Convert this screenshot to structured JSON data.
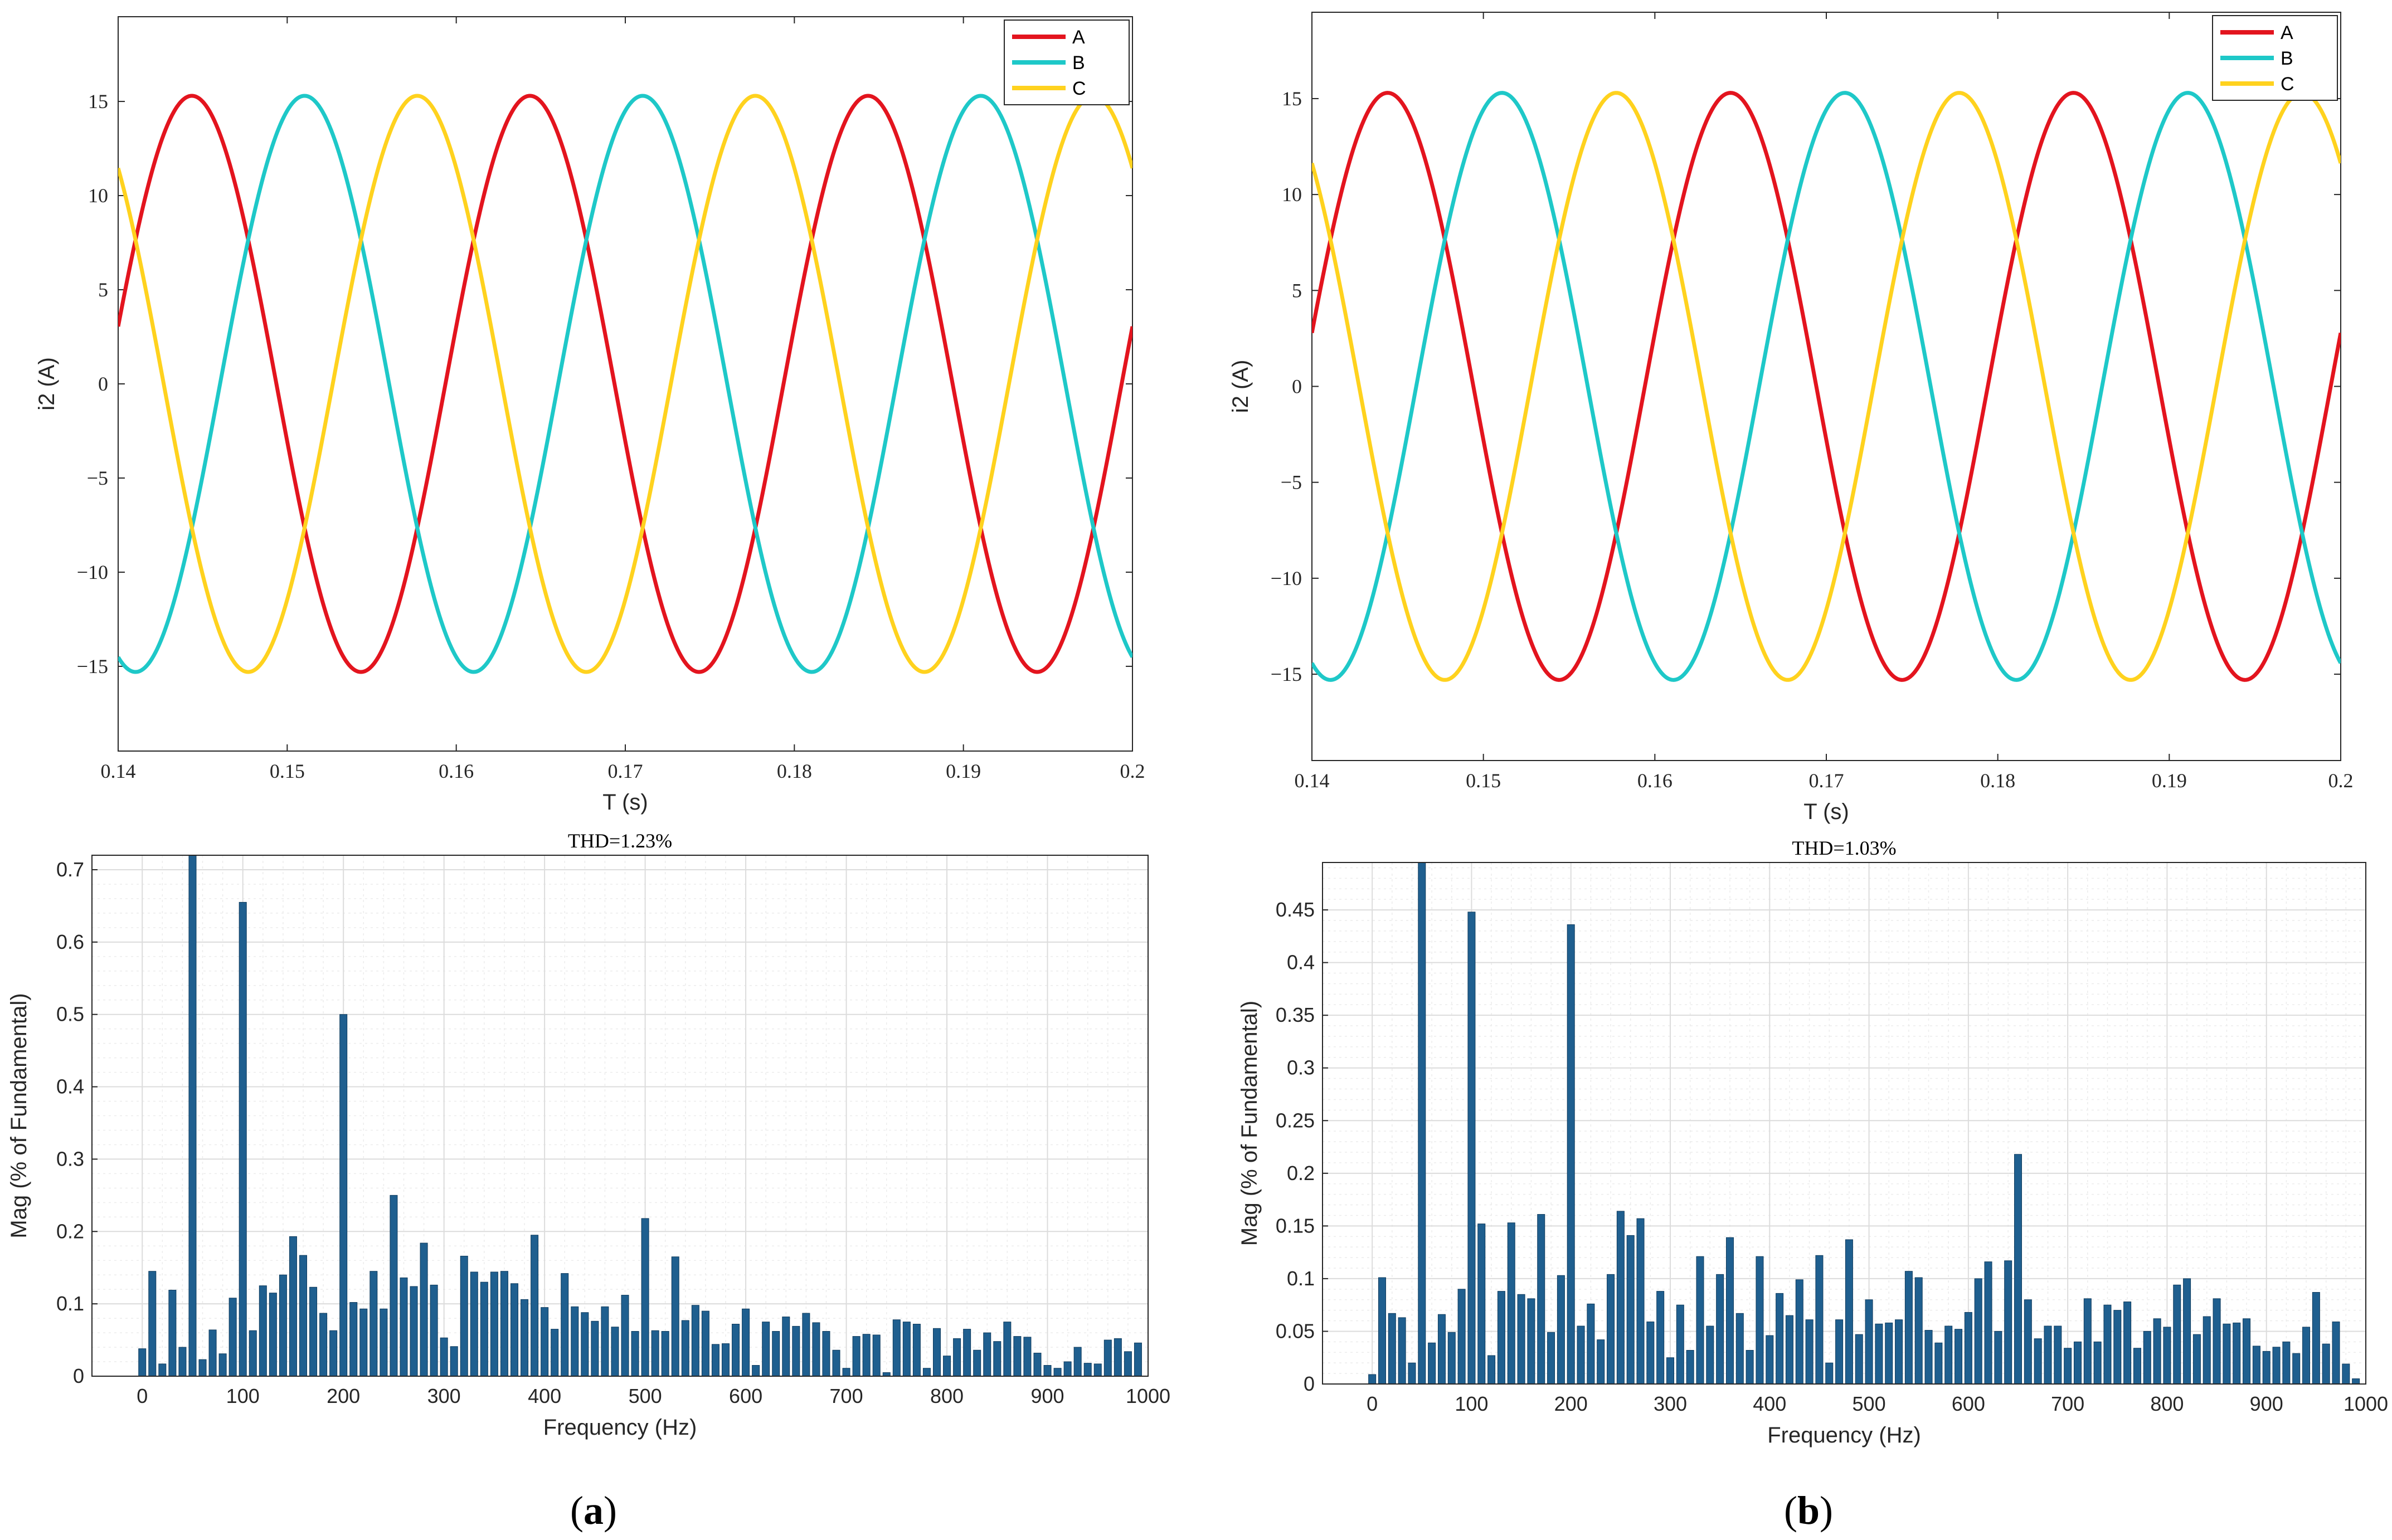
{
  "figure": {
    "panel_labels": [
      {
        "open": "(",
        "letter": "a",
        "close": ")"
      },
      {
        "open": "(",
        "letter": "b",
        "close": ")"
      }
    ],
    "colors": {
      "A": "#e3141e",
      "B": "#1ec8c8",
      "C": "#ffd21e",
      "bar": "#1f5f8f",
      "grid": "#e6e6e6",
      "axis": "#262626"
    }
  },
  "chart_data": [
    {
      "id": "waveform-a",
      "type": "line",
      "xlabel": "T (s)",
      "ylabel": "i2 (A)",
      "xlim": [
        0.14,
        0.2
      ],
      "ylim": [
        -19.5,
        19.5
      ],
      "xticks": [
        0.14,
        0.15,
        0.16,
        0.17,
        0.18,
        0.19,
        0.2
      ],
      "xtick_labels": [
        "0.14",
        "0.15",
        "0.16",
        "0.17",
        "0.18",
        "0.19",
        "0.2"
      ],
      "yticks": [
        15,
        10,
        5,
        0,
        -5,
        -10,
        -15
      ],
      "ytick_labels": [
        "15",
        "10",
        "5",
        "0",
        "−5",
        "−10",
        "−15"
      ],
      "legend": [
        "A",
        "B",
        "C"
      ],
      "legend_position": "top-right",
      "series": [
        {
          "name": "A",
          "amplitude": 15.3,
          "frequency_hz": 50,
          "phase_deg": 11.5
        },
        {
          "name": "B",
          "amplitude": 15.3,
          "frequency_hz": 50,
          "phase_deg": -108.5
        },
        {
          "name": "C",
          "amplitude": 15.3,
          "frequency_hz": 50,
          "phase_deg": 131.5
        }
      ]
    },
    {
      "id": "waveform-b",
      "type": "line",
      "xlabel": "T (s)",
      "ylabel": "i2 (A)",
      "xlim": [
        0.14,
        0.2
      ],
      "ylim": [
        -19.5,
        19.5
      ],
      "xticks": [
        0.14,
        0.15,
        0.16,
        0.17,
        0.18,
        0.19,
        0.2
      ],
      "xtick_labels": [
        "0.14",
        "0.15",
        "0.16",
        "0.17",
        "0.18",
        "0.19",
        "0.2"
      ],
      "yticks": [
        15,
        10,
        5,
        0,
        -5,
        -10,
        -15
      ],
      "ytick_labels": [
        "15",
        "10",
        "5",
        "0",
        "−5",
        "−10",
        "−15"
      ],
      "legend": [
        "A",
        "B",
        "C"
      ],
      "legend_position": "top-right",
      "series": [
        {
          "name": "A",
          "amplitude": 15.3,
          "frequency_hz": 50,
          "phase_deg": 10.5
        },
        {
          "name": "B",
          "amplitude": 15.3,
          "frequency_hz": 50,
          "phase_deg": -109.5
        },
        {
          "name": "C",
          "amplitude": 15.3,
          "frequency_hz": 50,
          "phase_deg": 130.5
        }
      ]
    },
    {
      "id": "spectrum-a",
      "type": "bar",
      "title": "THD=1.23%",
      "xlabel": "Frequency (Hz)",
      "ylabel": "Mag (% of Fundamental)",
      "xlim": [
        -50,
        1000
      ],
      "ylim": [
        0,
        0.72
      ],
      "xticks": [
        0,
        100,
        200,
        300,
        400,
        500,
        600,
        700,
        800,
        900,
        1000
      ],
      "yticks": [
        0,
        0.1,
        0.2,
        0.3,
        0.4,
        0.5,
        0.6,
        0.7
      ],
      "ytick_labels": [
        "0",
        "0.1",
        "0.2",
        "0.3",
        "0.4",
        "0.5",
        "0.6",
        "0.7"
      ],
      "grid": "on",
      "x": [
        0,
        10,
        20,
        30,
        40,
        50,
        60,
        70,
        80,
        90,
        100,
        110,
        120,
        130,
        140,
        150,
        160,
        170,
        180,
        190,
        200,
        210,
        220,
        230,
        240,
        250,
        260,
        270,
        280,
        290,
        300,
        310,
        320,
        330,
        340,
        350,
        360,
        370,
        380,
        390,
        400,
        410,
        420,
        430,
        440,
        450,
        460,
        470,
        480,
        490,
        500,
        510,
        520,
        530,
        540,
        550,
        560,
        570,
        580,
        590,
        600,
        610,
        620,
        630,
        640,
        650,
        660,
        670,
        680,
        690,
        700,
        710,
        720,
        730,
        740,
        750,
        760,
        770,
        780,
        790,
        800,
        810,
        820,
        830,
        840,
        850,
        860,
        870,
        880,
        890,
        900,
        910,
        920,
        930,
        940,
        950,
        960,
        970,
        980,
        990
      ],
      "values": [
        0.038,
        0.145,
        0.017,
        0.119,
        0.04,
        0.72,
        0.023,
        0.064,
        0.031,
        0.108,
        0.655,
        0.063,
        0.125,
        0.115,
        0.14,
        0.193,
        0.167,
        0.123,
        0.087,
        0.063,
        0.5,
        0.102,
        0.093,
        0.145,
        0.093,
        0.25,
        0.136,
        0.124,
        0.184,
        0.126,
        0.053,
        0.041,
        0.166,
        0.144,
        0.13,
        0.144,
        0.145,
        0.128,
        0.106,
        0.195,
        0.095,
        0.065,
        0.142,
        0.096,
        0.088,
        0.076,
        0.096,
        0.068,
        0.112,
        0.062,
        0.218,
        0.063,
        0.062,
        0.165,
        0.077,
        0.098,
        0.09,
        0.044,
        0.045,
        0.072,
        0.093,
        0.015,
        0.075,
        0.062,
        0.082,
        0.069,
        0.087,
        0.074,
        0.062,
        0.036,
        0.011,
        0.055,
        0.058,
        0.057,
        0.005,
        0.078,
        0.075,
        0.072,
        0.011,
        0.066,
        0.028,
        0.052,
        0.065,
        0.036,
        0.06,
        0.048,
        0.075,
        0.055,
        0.054,
        0.032,
        0.015,
        0.011,
        0.02,
        0.04,
        0.018,
        0.017,
        0.05,
        0.052,
        0.034,
        0.046
      ]
    },
    {
      "id": "spectrum-b",
      "type": "bar",
      "title": "THD=1.03%",
      "xlabel": "Frequency (Hz)",
      "ylabel": "Mag (% of Fundamental)",
      "xlim": [
        -50,
        1000
      ],
      "ylim": [
        0,
        0.495
      ],
      "xticks": [
        0,
        100,
        200,
        300,
        400,
        500,
        600,
        700,
        800,
        900,
        1000
      ],
      "yticks": [
        0,
        0.05,
        0.1,
        0.15,
        0.2,
        0.25,
        0.3,
        0.35,
        0.4,
        0.45
      ],
      "ytick_labels": [
        "0",
        "0.05",
        "0.1",
        "0.15",
        "0.2",
        "0.25",
        "0.3",
        "0.35",
        "0.4",
        "0.45"
      ],
      "grid": "on",
      "x": [
        0,
        10,
        20,
        30,
        40,
        50,
        60,
        70,
        80,
        90,
        100,
        110,
        120,
        130,
        140,
        150,
        160,
        170,
        180,
        190,
        200,
        210,
        220,
        230,
        240,
        250,
        260,
        270,
        280,
        290,
        300,
        310,
        320,
        330,
        340,
        350,
        360,
        370,
        380,
        390,
        400,
        410,
        420,
        430,
        440,
        450,
        460,
        470,
        480,
        490,
        500,
        510,
        520,
        530,
        540,
        550,
        560,
        570,
        580,
        590,
        600,
        610,
        620,
        630,
        640,
        650,
        660,
        670,
        680,
        690,
        700,
        710,
        720,
        730,
        740,
        750,
        760,
        770,
        780,
        790,
        800,
        810,
        820,
        830,
        840,
        850,
        860,
        870,
        880,
        890,
        900,
        910,
        920,
        930,
        940,
        950,
        960,
        970,
        980,
        990
      ],
      "values": [
        0.009,
        0.101,
        0.067,
        0.063,
        0.02,
        0.495,
        0.039,
        0.066,
        0.049,
        0.09,
        0.448,
        0.152,
        0.027,
        0.088,
        0.153,
        0.085,
        0.081,
        0.161,
        0.049,
        0.103,
        0.436,
        0.055,
        0.076,
        0.042,
        0.104,
        0.164,
        0.141,
        0.157,
        0.059,
        0.088,
        0.025,
        0.075,
        0.032,
        0.121,
        0.055,
        0.104,
        0.139,
        0.067,
        0.032,
        0.121,
        0.046,
        0.086,
        0.065,
        0.099,
        0.061,
        0.122,
        0.02,
        0.061,
        0.137,
        0.047,
        0.08,
        0.057,
        0.058,
        0.061,
        0.107,
        0.101,
        0.051,
        0.039,
        0.055,
        0.052,
        0.068,
        0.1,
        0.116,
        0.05,
        0.117,
        0.218,
        0.08,
        0.043,
        0.055,
        0.055,
        0.034,
        0.04,
        0.081,
        0.04,
        0.075,
        0.07,
        0.078,
        0.034,
        0.05,
        0.062,
        0.054,
        0.094,
        0.1,
        0.047,
        0.064,
        0.081,
        0.057,
        0.058,
        0.062,
        0.036,
        0.031,
        0.035,
        0.04,
        0.029,
        0.054,
        0.087,
        0.038,
        0.059,
        0.019,
        0.005
      ]
    }
  ]
}
